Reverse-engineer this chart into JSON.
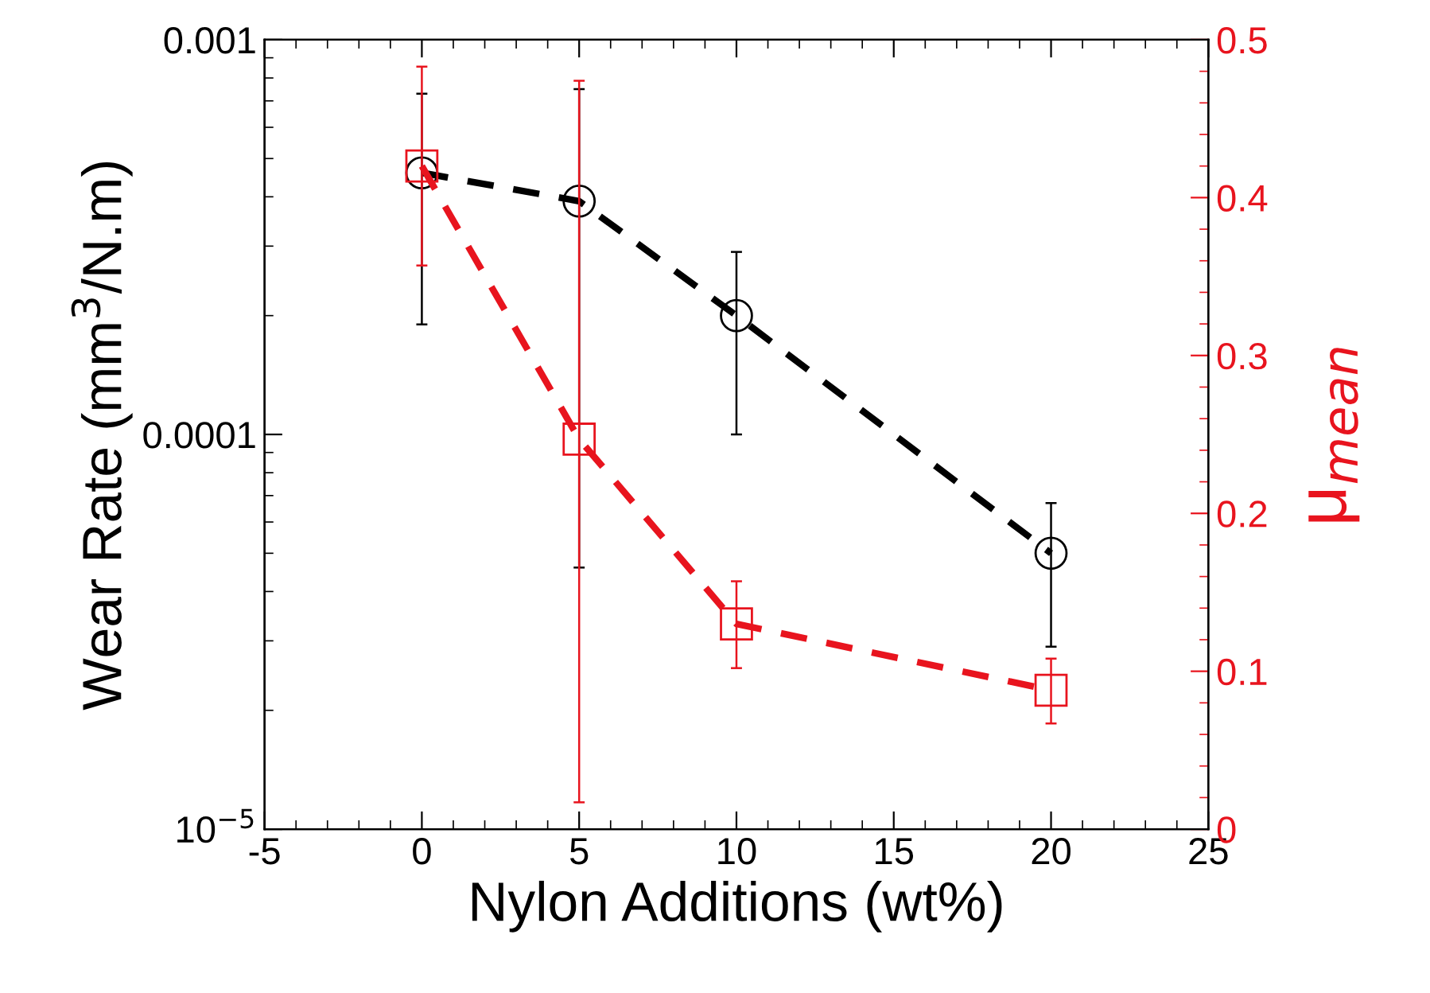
{
  "chart_data": {
    "type": "line",
    "xlabel": "Nylon Additions (wt%)",
    "ylabel": "Wear Rate (mm$^{3}$/N.m)",
    "y2label": "μ$_{mean}$",
    "log": "y",
    "x": [
      0,
      5,
      10,
      20
    ],
    "xlim": [
      -5,
      25
    ],
    "xticks": [
      -5,
      0,
      5,
      10,
      15,
      20,
      25
    ],
    "ylim": [
      1e-05,
      0.001
    ],
    "yticks": [
      {
        "value": 1e-05,
        "label": "10$^{−5}$"
      },
      {
        "value": 0.0001,
        "label": "0.0001"
      },
      {
        "value": 0.001,
        "label": "0.001"
      }
    ],
    "y2lim": [
      0,
      0.5
    ],
    "y2ticks": [
      0,
      0.1,
      0.2,
      0.3,
      0.4,
      0.5
    ],
    "grid": false,
    "line_style": "dashed",
    "series": [
      {
        "color": "#000000",
        "marker": "circle",
        "values": [
          0.00046,
          0.00039,
          0.0002,
          5e-05
        ],
        "errors": [
          [
            0.00019,
            0.00073
          ],
          [
            4.6e-05,
            0.00075
          ],
          [
            0.0001,
            0.00029
          ],
          [
            2.9e-05,
            6.7e-05
          ]
        ]
      },
      {
        "color": "#e8141e",
        "marker": "square",
        "axis": "y2",
        "values": [
          0.42,
          0.247,
          0.13,
          0.088
        ],
        "errors": [
          [
            0.357,
            0.483
          ],
          [
            0.017,
            0.474
          ],
          [
            0.102,
            0.157
          ],
          [
            0.067,
            0.108
          ]
        ]
      }
    ]
  }
}
